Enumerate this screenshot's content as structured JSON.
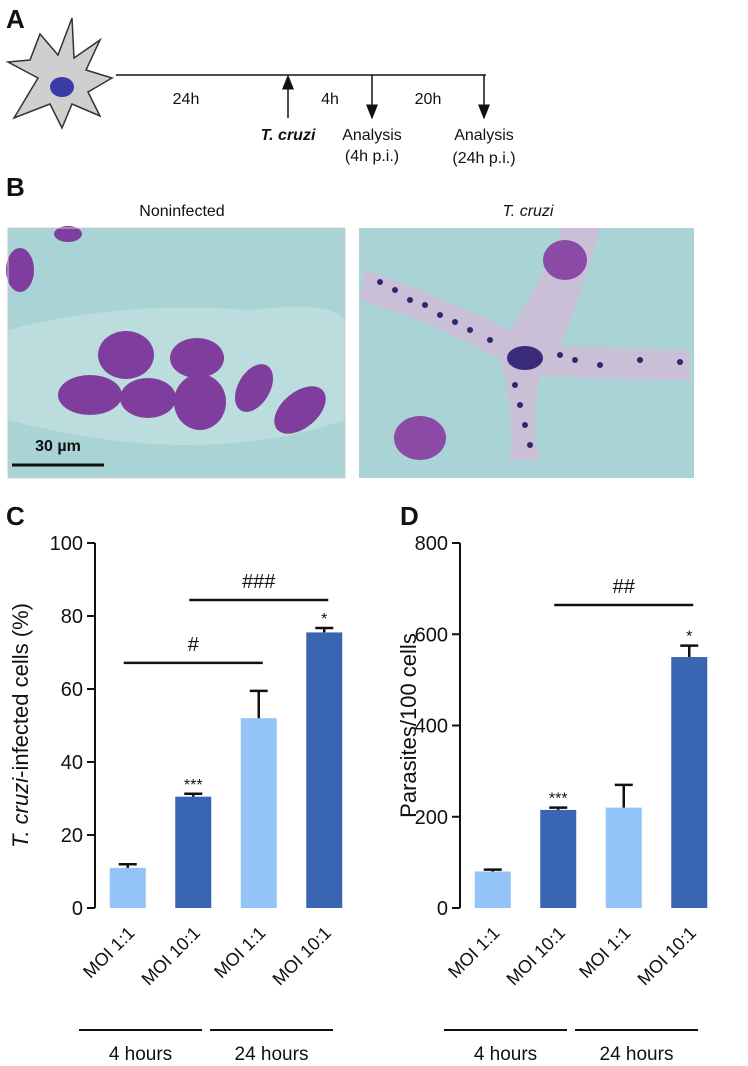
{
  "timeline": {
    "label": "A",
    "first_interval": "24h",
    "infection": "T. cruzi",
    "second_interval": "4h",
    "third_interval": "20h",
    "analysis_1": [
      "Analysis",
      "(4h p.i.)"
    ],
    "analysis_2": [
      "Analysis",
      "(24h p.i.)"
    ]
  },
  "micrographs": {
    "label": "B",
    "left_title": "Noninfected",
    "right_title": "T. cruzi",
    "scale_bar": "30 µm"
  },
  "chart_data": [
    {
      "type": "bar",
      "panel_label": "C",
      "ylabel": [
        "T. cruzi",
        "-infected cells (%)"
      ],
      "categories": [
        "MOI 1:1",
        "MOI 10:1",
        "MOI 1:1",
        "MOI 10:1"
      ],
      "values": [
        11,
        30.5,
        52,
        75.5
      ],
      "errors": [
        1,
        0.8,
        7.5,
        1.2
      ],
      "colors": [
        "#94c3f7",
        "#3a65b3",
        "#94c3f7",
        "#3a65b3"
      ],
      "ylim": [
        0,
        100
      ],
      "yticks": [
        0,
        20,
        40,
        60,
        80,
        100
      ],
      "annotations": [
        {
          "index": 1,
          "text": "***"
        },
        {
          "index": 3,
          "text": "*"
        }
      ],
      "brackets": [
        {
          "from": 0,
          "to": 2,
          "text": "#"
        },
        {
          "from": 1,
          "to": 3,
          "text": "###"
        }
      ],
      "groups": [
        {
          "from": 0,
          "to": 1,
          "text": "4 hours"
        },
        {
          "from": 2,
          "to": 3,
          "text": "24 hours"
        }
      ]
    },
    {
      "type": "bar",
      "panel_label": "D",
      "ylabel": [
        "Parasites/100 cells"
      ],
      "categories": [
        "MOI 1:1",
        "MOI 10:1",
        "MOI 1:1",
        "MOI 10:1"
      ],
      "values": [
        80,
        215,
        220,
        550
      ],
      "errors": [
        4,
        5,
        50,
        25
      ],
      "colors": [
        "#94c3f7",
        "#3a65b3",
        "#94c3f7",
        "#3a65b3"
      ],
      "ylim": [
        0,
        800
      ],
      "yticks": [
        0,
        200,
        400,
        600,
        800
      ],
      "annotations": [
        {
          "index": 1,
          "text": "***"
        },
        {
          "index": 3,
          "text": "*"
        }
      ],
      "brackets": [
        {
          "from": 1,
          "to": 3,
          "text": "##"
        }
      ],
      "groups": [
        {
          "from": 0,
          "to": 1,
          "text": "4 hours"
        },
        {
          "from": 2,
          "to": 3,
          "text": "24 hours"
        }
      ]
    }
  ]
}
